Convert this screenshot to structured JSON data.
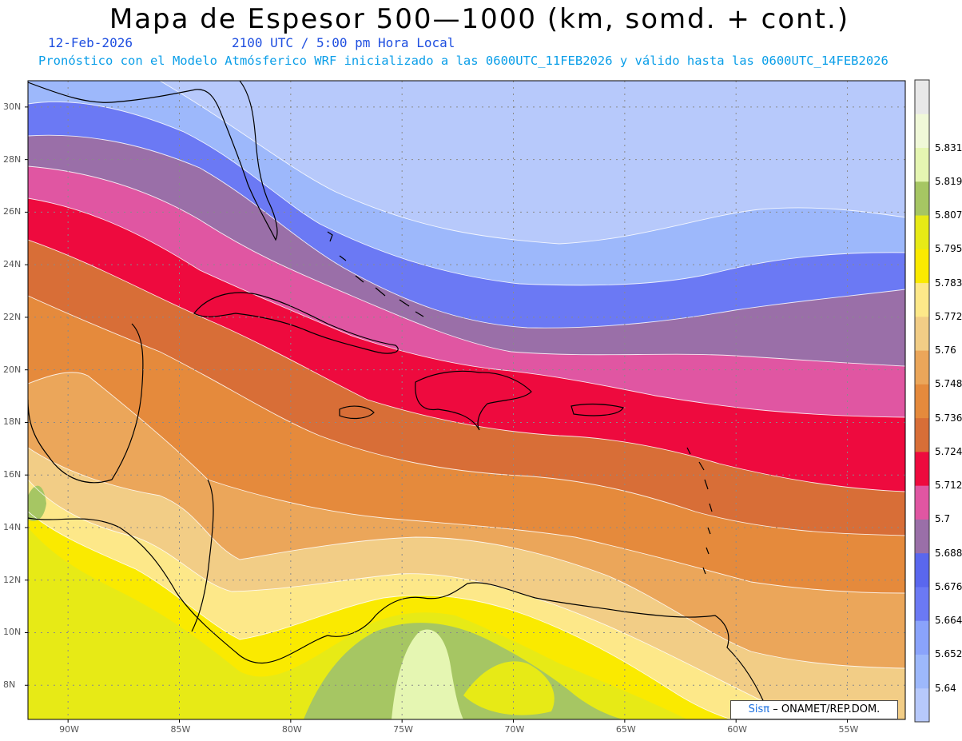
{
  "header": {
    "title": "Mapa de Espesor 500—1000 (km, somd. + cont.)",
    "date": "12-Feb-2026",
    "time": "2100 UTC / 5:00 pm Hora Local",
    "description": "Pronóstico con el Modelo Atmósferico WRF inicializado a las 0600UTC_11FEB2026 y válido hasta las  0600UTC_14FEB2026"
  },
  "credit": {
    "brand": "Sisπ",
    "text": "– ONAMET/REP.DOM."
  },
  "axes": {
    "lat_labels": [
      "30N",
      "28N",
      "26N",
      "24N",
      "22N",
      "20N",
      "18N",
      "16N",
      "14N",
      "12N",
      "10N",
      "8N"
    ],
    "lat_values": [
      30,
      28,
      26,
      24,
      22,
      20,
      18,
      16,
      14,
      12,
      10,
      8
    ],
    "lon_labels": [
      "90W",
      "85W",
      "80W",
      "75W",
      "70W",
      "65W",
      "60W",
      "55W"
    ],
    "lon_values": [
      -90,
      -85,
      -80,
      -75,
      -70,
      -65,
      -60,
      -55
    ],
    "lat_range": [
      6.7,
      31.0
    ],
    "lon_range": [
      -91.8,
      -52.4
    ]
  },
  "colorbar": {
    "levels": [
      "5.64",
      "5.652",
      "5.664",
      "5.676",
      "5.688",
      "5.7",
      "5.712",
      "5.724",
      "5.736",
      "5.748",
      "5.76",
      "5.772",
      "5.783",
      "5.795",
      "5.807",
      "5.819",
      "5.831"
    ],
    "colors": [
      "#b7c9fb",
      "#9db8fb",
      "#8aa3fb",
      "#6b79f4",
      "#5a67ee",
      "#9a6fa8",
      "#e056a2",
      "#ee0a3e",
      "#d86e37",
      "#e58a3c",
      "#eba65a",
      "#f2cd86",
      "#fde889",
      "#faea00",
      "#e7ea16",
      "#a6c663",
      "#e5f6b2",
      "#f0f8d8",
      "#e8e8e8"
    ]
  },
  "map_layers": [
    {
      "name": "band-5.64",
      "color": "#b7c9fb"
    },
    {
      "name": "band-5.652",
      "color": "#9db8fb"
    },
    {
      "name": "band-5.664",
      "color": "#6b79f4"
    },
    {
      "name": "band-5.676",
      "color": "#9a6fa8"
    },
    {
      "name": "band-5.688",
      "color": "#e056a2"
    },
    {
      "name": "band-5.70",
      "color": "#ee0a3e"
    },
    {
      "name": "band-5.712",
      "color": "#d86e37"
    },
    {
      "name": "band-5.724",
      "color": "#e58a3c"
    },
    {
      "name": "band-5.736",
      "color": "#eba65a"
    },
    {
      "name": "band-5.748",
      "color": "#f2cd86"
    },
    {
      "name": "band-5.76",
      "color": "#fde889"
    },
    {
      "name": "band-5.772",
      "color": "#faea00"
    },
    {
      "name": "band-5.783",
      "color": "#e7ea16"
    },
    {
      "name": "band-5.795",
      "color": "#a6c663"
    },
    {
      "name": "band-5.807",
      "color": "#e5f6b2"
    }
  ]
}
